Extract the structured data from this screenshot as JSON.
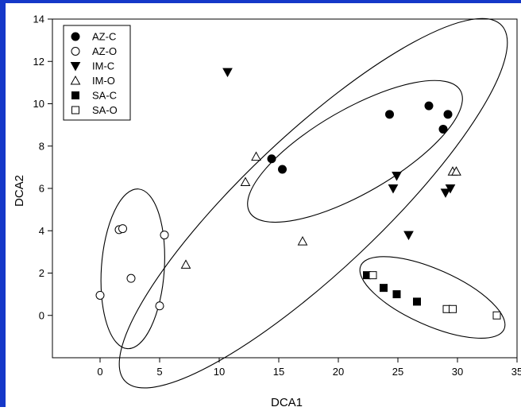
{
  "chart_data": {
    "type": "scatter",
    "xlabel": "DCA1",
    "ylabel": "DCA2",
    "xlim": [
      -4,
      35
    ],
    "ylim": [
      -2,
      14
    ],
    "xticks": [
      0,
      5,
      10,
      15,
      20,
      25,
      30,
      35
    ],
    "yticks": [
      0,
      2,
      4,
      6,
      8,
      10,
      12,
      14
    ],
    "legend_position": "top-left",
    "grid": false,
    "series": [
      {
        "name": "AZ-C",
        "marker": "circle",
        "filled": true,
        "points": [
          [
            14.4,
            7.4
          ],
          [
            15.3,
            6.9
          ],
          [
            24.3,
            9.5
          ],
          [
            27.6,
            9.9
          ],
          [
            29.2,
            9.5
          ],
          [
            28.8,
            8.8
          ]
        ]
      },
      {
        "name": "AZ-O",
        "marker": "circle",
        "filled": false,
        "points": [
          [
            1.6,
            4.05
          ],
          [
            1.9,
            4.1
          ],
          [
            5.4,
            3.8
          ],
          [
            2.6,
            1.75
          ],
          [
            0.0,
            0.95
          ],
          [
            5.0,
            0.45
          ]
        ]
      },
      {
        "name": "IM-C",
        "marker": "triangle-down",
        "filled": true,
        "points": [
          [
            10.7,
            11.5
          ],
          [
            24.9,
            6.6
          ],
          [
            24.6,
            6.0
          ],
          [
            29.0,
            5.8
          ],
          [
            29.4,
            6.0
          ],
          [
            25.9,
            3.8
          ]
        ]
      },
      {
        "name": "IM-O",
        "marker": "triangle-up",
        "filled": false,
        "points": [
          [
            13.1,
            7.5
          ],
          [
            12.2,
            6.3
          ],
          [
            29.6,
            6.8
          ],
          [
            29.9,
            6.8
          ],
          [
            17.0,
            3.5
          ],
          [
            7.2,
            2.4
          ]
        ]
      },
      {
        "name": "SA-C",
        "marker": "square",
        "filled": true,
        "points": [
          [
            22.4,
            1.9
          ],
          [
            23.8,
            1.3
          ],
          [
            24.9,
            1.0
          ],
          [
            26.6,
            0.65
          ]
        ]
      },
      {
        "name": "SA-O",
        "marker": "square",
        "filled": false,
        "points": [
          [
            22.9,
            1.9
          ],
          [
            29.1,
            0.3
          ],
          [
            29.6,
            0.3
          ],
          [
            33.3,
            0.0
          ]
        ]
      }
    ],
    "ellipses": [
      {
        "cx": 21.4,
        "cy": 7.75,
        "rx": 9.3,
        "ry": 2.05,
        "angle": 18
      },
      {
        "cx": 17.9,
        "cy": 5.3,
        "rx": 17.9,
        "ry": 3.5,
        "angle": 28
      },
      {
        "cx": 2.75,
        "cy": 2.2,
        "rx": 3.8,
        "ry": 2.6,
        "angle": 83
      },
      {
        "cx": 27.9,
        "cy": 0.85,
        "rx": 6.2,
        "ry": 1.35,
        "angle": -14
      }
    ]
  }
}
